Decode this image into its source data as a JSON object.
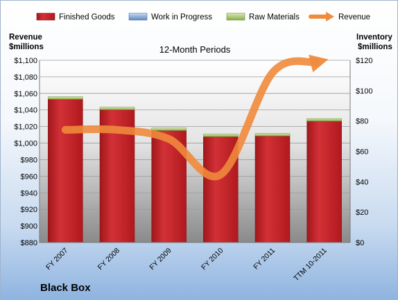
{
  "company": "Black Box",
  "chart_data": {
    "type": "bar",
    "title": "12-Month Periods",
    "categories": [
      "FY 2007",
      "FY 2008",
      "FY 2009",
      "FY 2010",
      "FY 2011",
      "TTM 10-2011"
    ],
    "series": [
      {
        "name": "Finished Goods",
        "axis": "right",
        "color": "#c0282c",
        "values": [
          94.3,
          87.4,
          73.7,
          69.7,
          70.1,
          79.9
        ]
      },
      {
        "name": "Work in Progress",
        "axis": "right",
        "color": "#6f97cf",
        "values": [
          0,
          0,
          0,
          0,
          0,
          0
        ]
      },
      {
        "name": "Raw Materials",
        "axis": "right",
        "color": "#9bbf59",
        "values": [
          1.7,
          1.7,
          1.7,
          1.7,
          1.7,
          1.7
        ]
      },
      {
        "name": "Revenue",
        "axis": "left",
        "color": "#f08a3c",
        "type": "line",
        "values": [
          1016,
          1016,
          1005,
          962,
          1085,
          1100
        ]
      }
    ],
    "y_left": {
      "label": "Revenue $millions",
      "ylim": [
        880,
        1100
      ],
      "ticks": [
        "$880",
        "$900",
        "$920",
        "$940",
        "$960",
        "$980",
        "$1,000",
        "$1,020",
        "$1,040",
        "$1,060",
        "$1,080",
        "$1,100"
      ]
    },
    "y_right": {
      "label": "Inventory $millions",
      "ylim": [
        0,
        120
      ],
      "ticks": [
        "$0",
        "$20",
        "$40",
        "$60",
        "$80",
        "$100",
        "$120"
      ]
    },
    "grid": true,
    "legend": "top"
  }
}
